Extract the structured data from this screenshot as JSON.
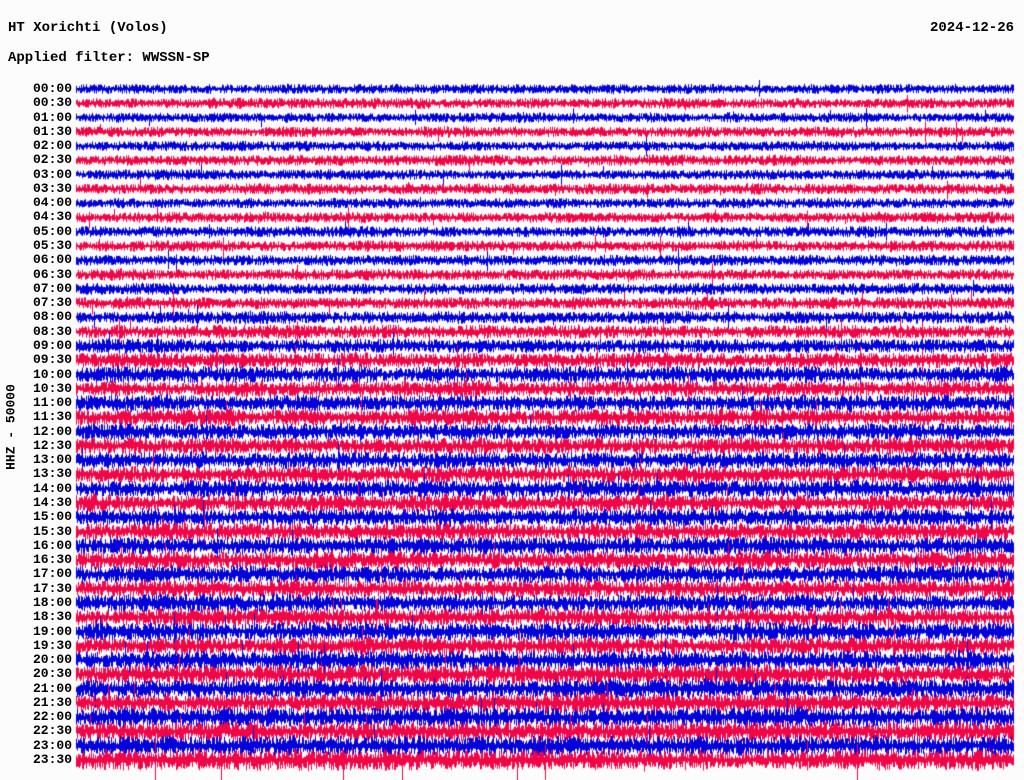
{
  "header": {
    "title": "HT Xorichti (Volos)",
    "date": "2024-12-26",
    "filter_label": "Applied filter: WWSSN-SP"
  },
  "y_axis": {
    "label": "HHZ - 50000"
  },
  "chart_data": {
    "type": "line",
    "subtype": "helicorder-seismogram",
    "title": "HT Xorichti (Volos)",
    "date": "2024-12-26",
    "filter": "WWSSN-SP",
    "channel": "HHZ",
    "scale_value": 50000,
    "minutes_per_row": 30,
    "rows_total": 48,
    "grid": false,
    "legend": "none",
    "x_axis": "0-30 minutes per row, no tick labels shown",
    "colors": {
      "blue": "#0000dc",
      "red": "#f20546"
    },
    "amplitude_note": "relative half-amplitude of continuous noise in px; background microseismic noise grows from night minimum to strong daytime/evening cultural noise",
    "rows": [
      {
        "time": "00:00",
        "color": "blue",
        "amp": 4.2
      },
      {
        "time": "00:30",
        "color": "red",
        "amp": 4.5
      },
      {
        "time": "01:00",
        "color": "blue",
        "amp": 4.2
      },
      {
        "time": "01:30",
        "color": "red",
        "amp": 4.5
      },
      {
        "time": "02:00",
        "color": "blue",
        "amp": 4.4
      },
      {
        "time": "02:30",
        "color": "red",
        "amp": 4.6
      },
      {
        "time": "03:00",
        "color": "blue",
        "amp": 4.4
      },
      {
        "time": "03:30",
        "color": "red",
        "amp": 4.6
      },
      {
        "time": "04:00",
        "color": "blue",
        "amp": 4.4
      },
      {
        "time": "04:30",
        "color": "red",
        "amp": 4.7
      },
      {
        "time": "05:00",
        "color": "blue",
        "amp": 4.6
      },
      {
        "time": "05:30",
        "color": "red",
        "amp": 4.8
      },
      {
        "time": "06:00",
        "color": "blue",
        "amp": 4.7
      },
      {
        "time": "06:30",
        "color": "red",
        "amp": 4.9
      },
      {
        "time": "07:00",
        "color": "blue",
        "amp": 5.0
      },
      {
        "time": "07:30",
        "color": "red",
        "amp": 5.1
      },
      {
        "time": "08:00",
        "color": "blue",
        "amp": 5.3
      },
      {
        "time": "08:30",
        "color": "red",
        "amp": 5.7
      },
      {
        "time": "09:00",
        "color": "blue",
        "amp": 6.1
      },
      {
        "time": "09:30",
        "color": "red",
        "amp": 6.5
      },
      {
        "time": "10:00",
        "color": "blue",
        "amp": 7.0
      },
      {
        "time": "10:30",
        "color": "red",
        "amp": 7.1
      },
      {
        "time": "11:00",
        "color": "blue",
        "amp": 7.2
      },
      {
        "time": "11:30",
        "color": "red",
        "amp": 7.2
      },
      {
        "time": "12:00",
        "color": "blue",
        "amp": 7.3
      },
      {
        "time": "12:30",
        "color": "red",
        "amp": 7.3
      },
      {
        "time": "13:00",
        "color": "blue",
        "amp": 7.4
      },
      {
        "time": "13:30",
        "color": "red",
        "amp": 7.4
      },
      {
        "time": "14:00",
        "color": "blue",
        "amp": 7.5
      },
      {
        "time": "14:30",
        "color": "red",
        "amp": 7.5
      },
      {
        "time": "15:00",
        "color": "blue",
        "amp": 7.5
      },
      {
        "time": "15:30",
        "color": "red",
        "amp": 7.6
      },
      {
        "time": "16:00",
        "color": "blue",
        "amp": 7.6
      },
      {
        "time": "16:30",
        "color": "red",
        "amp": 7.6
      },
      {
        "time": "17:00",
        "color": "blue",
        "amp": 7.7
      },
      {
        "time": "17:30",
        "color": "red",
        "amp": 7.7
      },
      {
        "time": "18:00",
        "color": "blue",
        "amp": 7.8
      },
      {
        "time": "18:30",
        "color": "red",
        "amp": 7.8
      },
      {
        "time": "19:00",
        "color": "blue",
        "amp": 7.9
      },
      {
        "time": "19:30",
        "color": "red",
        "amp": 7.9
      },
      {
        "time": "20:00",
        "color": "blue",
        "amp": 8.1
      },
      {
        "time": "20:30",
        "color": "red",
        "amp": 8.2
      },
      {
        "time": "21:00",
        "color": "blue",
        "amp": 8.3
      },
      {
        "time": "21:30",
        "color": "red",
        "amp": 8.4
      },
      {
        "time": "22:00",
        "color": "blue",
        "amp": 8.4
      },
      {
        "time": "22:30",
        "color": "red",
        "amp": 8.5
      },
      {
        "time": "23:00",
        "color": "blue",
        "amp": 8.6
      },
      {
        "time": "23:30",
        "color": "red",
        "amp": 8.7
      }
    ]
  }
}
